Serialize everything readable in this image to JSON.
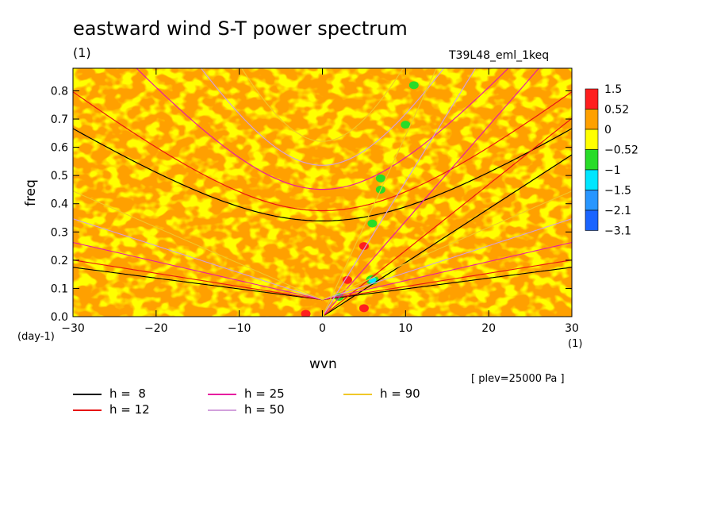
{
  "title": "eastward wind S-T power spectrum",
  "units_top": "(1)",
  "experiment_label": "T39L48_eml_1keq",
  "plev_note": "[ plev=25000 Pa ]",
  "colors": {
    "very_low": "#1a64ff",
    "low": "#2896ff",
    "mid_low": "#00e6ff",
    "green": "#28dc28",
    "yellow": "#ffff00",
    "orange": "#ffa000",
    "red": "#ff1e1e"
  },
  "chart_data": {
    "type": "heatmap",
    "xlabel": "wvn",
    "ylabel": "freq",
    "x_units": "(1)",
    "y_units": "(day-1)",
    "xlim": [
      -30,
      30
    ],
    "ylim": [
      0,
      0.88
    ],
    "x_ticks": [
      -30,
      -20,
      -10,
      0,
      10,
      20,
      30
    ],
    "y_ticks": [
      0.0,
      0.1,
      0.2,
      0.3,
      0.4,
      0.5,
      0.6,
      0.7,
      0.8
    ],
    "colorbar": {
      "levels": [
        "1.5",
        "0.52",
        "0",
        "-0.52",
        "-1",
        "-1.5",
        "-2.1",
        "-3.1"
      ],
      "colors": [
        "#ff1e1e",
        "#ffa000",
        "#ffff00",
        "#28dc28",
        "#00e6ff",
        "#2896ff",
        "#1a64ff"
      ]
    },
    "field_description": "mottled mix of orange (0 to 0.52) and yellow (-0.52 to 0) over whole domain, with green and cyan spots and red spots near wvn 5-7",
    "highlight_spots": [
      {
        "x": 5,
        "y": 0.03,
        "level": "red"
      },
      {
        "x": -2,
        "y": 0.01,
        "level": "red"
      },
      {
        "x": 5,
        "y": 0.25,
        "level": "red"
      },
      {
        "x": 3,
        "y": 0.13,
        "level": "red"
      },
      {
        "x": 6,
        "y": 0.13,
        "level": "mid_low"
      },
      {
        "x": 6,
        "y": 0.33,
        "level": "green"
      },
      {
        "x": 7,
        "y": 0.49,
        "level": "green"
      },
      {
        "x": 10,
        "y": 0.68,
        "level": "green"
      },
      {
        "x": 11,
        "y": 0.82,
        "level": "green"
      },
      {
        "x": 7,
        "y": 0.45,
        "level": "green"
      },
      {
        "x": 2,
        "y": 0.07,
        "level": "green"
      }
    ],
    "dispersion_curves": [
      {
        "name": "h =  8",
        "color": "#000000"
      },
      {
        "name": "h = 12",
        "color": "#e61414"
      },
      {
        "name": "h = 25",
        "color": "#e61ea0"
      },
      {
        "name": "h = 50",
        "color": "#d2a0dc"
      },
      {
        "name": "h = 90",
        "color": "#f0c828"
      }
    ]
  }
}
